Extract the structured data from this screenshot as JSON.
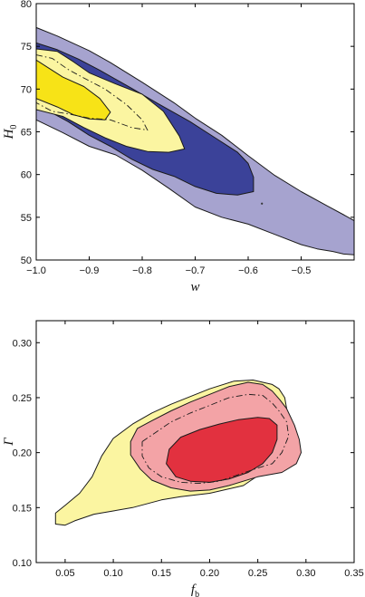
{
  "chart_data": [
    {
      "type": "contour",
      "xlabel": "w",
      "ylabel": "H",
      "ylabel_sub": "0",
      "xlim": [
        -1.0,
        -0.4
      ],
      "ylim": [
        50,
        80
      ],
      "xticks": [
        -1.0,
        -0.9,
        -0.8,
        -0.7,
        -0.6,
        -0.5
      ],
      "xtick_labels": [
        "−1.0",
        "−0.9",
        "−0.8",
        "−0.7",
        "−0.6",
        "−0.5"
      ],
      "yticks": [
        50,
        55,
        60,
        65,
        70,
        75,
        80
      ],
      "ytick_labels": [
        "50",
        "55",
        "60",
        "65",
        "70",
        "75",
        "80"
      ],
      "regions": [
        {
          "level": "outer",
          "color": "#a6a3cf",
          "points": [
            [
              -1.0,
              77.2
            ],
            [
              -0.96,
              76.2
            ],
            [
              -0.9,
              74.5
            ],
            [
              -0.86,
              73.1
            ],
            [
              -0.8,
              70.8
            ],
            [
              -0.74,
              68.4
            ],
            [
              -0.7,
              66.6
            ],
            [
              -0.65,
              64.6
            ],
            [
              -0.6,
              62.2
            ],
            [
              -0.55,
              59.9
            ],
            [
              -0.5,
              58.0
            ],
            [
              -0.45,
              56.3
            ],
            [
              -0.42,
              55.3
            ],
            [
              -0.4,
              54.6
            ],
            [
              -0.4,
              50.6
            ],
            [
              -0.42,
              50.7
            ],
            [
              -0.44,
              51.0
            ],
            [
              -0.47,
              51.3
            ],
            [
              -0.5,
              51.8
            ],
            [
              -0.55,
              53.0
            ],
            [
              -0.6,
              54.2
            ],
            [
              -0.65,
              55.0
            ],
            [
              -0.7,
              56.2
            ],
            [
              -0.75,
              58.4
            ],
            [
              -0.8,
              60.5
            ],
            [
              -0.85,
              62.3
            ],
            [
              -0.9,
              63.3
            ],
            [
              -0.95,
              64.9
            ],
            [
              -1.0,
              66.4
            ]
          ]
        },
        {
          "level": "mid",
          "color": "#3b4299",
          "points": [
            [
              -1.0,
              75.4
            ],
            [
              -0.96,
              74.6
            ],
            [
              -0.92,
              73.5
            ],
            [
              -0.88,
              72.2
            ],
            [
              -0.82,
              70.1
            ],
            [
              -0.77,
              68.3
            ],
            [
              -0.71,
              66.2
            ],
            [
              -0.66,
              64.2
            ],
            [
              -0.62,
              62.6
            ],
            [
              -0.6,
              61.3
            ],
            [
              -0.59,
              59.7
            ],
            [
              -0.59,
              58.0
            ],
            [
              -0.62,
              57.6
            ],
            [
              -0.66,
              57.8
            ],
            [
              -0.7,
              58.6
            ],
            [
              -0.74,
              59.8
            ],
            [
              -0.78,
              60.6
            ],
            [
              -0.82,
              61.8
            ],
            [
              -0.86,
              63.3
            ],
            [
              -0.9,
              64.6
            ],
            [
              -0.94,
              66.2
            ],
            [
              -0.97,
              67.2
            ],
            [
              -1.0,
              67.6
            ]
          ]
        },
        {
          "level": "yellow-outer",
          "color": "#fbf5a1",
          "points": [
            [
              -1.0,
              74.7
            ],
            [
              -0.96,
              74.4
            ],
            [
              -0.93,
              73.2
            ],
            [
              -0.9,
              71.9
            ],
            [
              -0.85,
              70.6
            ],
            [
              -0.8,
              69.4
            ],
            [
              -0.76,
              67.4
            ],
            [
              -0.73,
              64.5
            ],
            [
              -0.72,
              63.0
            ],
            [
              -0.75,
              62.6
            ],
            [
              -0.79,
              62.7
            ],
            [
              -0.83,
              63.3
            ],
            [
              -0.87,
              64.3
            ],
            [
              -0.91,
              65.5
            ],
            [
              -0.95,
              66.8
            ],
            [
              -1.0,
              67.6
            ]
          ]
        },
        {
          "level": "yellow-inner",
          "color": "#f7e317",
          "points": [
            [
              -1.0,
              73.4
            ],
            [
              -0.98,
              72.6
            ],
            [
              -0.95,
              71.4
            ],
            [
              -0.91,
              70.3
            ],
            [
              -0.88,
              68.9
            ],
            [
              -0.86,
              67.3
            ],
            [
              -0.87,
              66.4
            ],
            [
              -0.9,
              66.5
            ],
            [
              -0.93,
              67.0
            ],
            [
              -0.96,
              67.9
            ],
            [
              -1.0,
              68.9
            ]
          ]
        }
      ],
      "dashed_lines": [
        [
          [
            -1.0,
            74.0
          ],
          [
            -0.97,
            73.6
          ],
          [
            -0.94,
            72.3
          ],
          [
            -0.91,
            71.3
          ],
          [
            -0.87,
            70.0
          ],
          [
            -0.83,
            68.2
          ],
          [
            -0.8,
            66.4
          ],
          [
            -0.79,
            65.2
          ],
          [
            -0.82,
            65.5
          ],
          [
            -0.86,
            66.4
          ],
          [
            -0.9,
            66.6
          ],
          [
            -0.94,
            67.1
          ],
          [
            -0.97,
            67.4
          ],
          [
            -1.0,
            68.4
          ]
        ]
      ],
      "markers": [
        [
          -0.574,
          56.6
        ]
      ]
    },
    {
      "type": "contour",
      "xlabel": "f",
      "xlabel_sub": "b",
      "ylabel": "Γ",
      "xlim": [
        0.02,
        0.35
      ],
      "ylim": [
        0.1,
        0.32
      ],
      "xticks": [
        0.05,
        0.1,
        0.15,
        0.2,
        0.25,
        0.3,
        0.35
      ],
      "xtick_labels": [
        "0.05",
        "0.10",
        "0.15",
        "0.20",
        "0.25",
        "0.30",
        "0.35"
      ],
      "yticks": [
        0.1,
        0.15,
        0.2,
        0.25,
        0.3
      ],
      "ytick_labels": [
        "0.10",
        "0.15",
        "0.20",
        "0.25",
        "0.30"
      ],
      "regions": [
        {
          "level": "outer",
          "color": "#fbf5a1",
          "points": [
            [
              0.04,
              0.135
            ],
            [
              0.04,
              0.145
            ],
            [
              0.05,
              0.152
            ],
            [
              0.065,
              0.163
            ],
            [
              0.078,
              0.178
            ],
            [
              0.088,
              0.197
            ],
            [
              0.1,
              0.213
            ],
            [
              0.12,
              0.226
            ],
            [
              0.14,
              0.236
            ],
            [
              0.16,
              0.244
            ],
            [
              0.18,
              0.251
            ],
            [
              0.2,
              0.258
            ],
            [
              0.225,
              0.265
            ],
            [
              0.245,
              0.266
            ],
            [
              0.265,
              0.262
            ],
            [
              0.272,
              0.258
            ],
            [
              0.278,
              0.25
            ],
            [
              0.28,
              0.24
            ],
            [
              0.28,
              0.225
            ],
            [
              0.27,
              0.2
            ],
            [
              0.255,
              0.182
            ],
            [
              0.235,
              0.17
            ],
            [
              0.2,
              0.163
            ],
            [
              0.17,
              0.16
            ],
            [
              0.15,
              0.157
            ],
            [
              0.12,
              0.15
            ],
            [
              0.1,
              0.147
            ],
            [
              0.08,
              0.144
            ],
            [
              0.06,
              0.138
            ],
            [
              0.05,
              0.134
            ]
          ]
        },
        {
          "level": "mid",
          "color": "#f3a3a6",
          "points": [
            [
              0.118,
              0.21
            ],
            [
              0.125,
              0.222
            ],
            [
              0.14,
              0.229
            ],
            [
              0.16,
              0.238
            ],
            [
              0.18,
              0.246
            ],
            [
              0.2,
              0.253
            ],
            [
              0.22,
              0.26
            ],
            [
              0.24,
              0.264
            ],
            [
              0.255,
              0.262
            ],
            [
              0.265,
              0.256
            ],
            [
              0.273,
              0.248
            ],
            [
              0.28,
              0.24
            ],
            [
              0.288,
              0.225
            ],
            [
              0.293,
              0.212
            ],
            [
              0.295,
              0.2
            ],
            [
              0.29,
              0.19
            ],
            [
              0.275,
              0.182
            ],
            [
              0.25,
              0.178
            ],
            [
              0.22,
              0.17
            ],
            [
              0.2,
              0.166
            ],
            [
              0.18,
              0.165
            ],
            [
              0.16,
              0.168
            ],
            [
              0.14,
              0.175
            ],
            [
              0.128,
              0.185
            ],
            [
              0.118,
              0.198
            ]
          ]
        },
        {
          "level": "inner",
          "color": "#e2313f",
          "points": [
            [
              0.155,
              0.19
            ],
            [
              0.158,
              0.203
            ],
            [
              0.17,
              0.214
            ],
            [
              0.19,
              0.221
            ],
            [
              0.21,
              0.226
            ],
            [
              0.23,
              0.23
            ],
            [
              0.25,
              0.232
            ],
            [
              0.262,
              0.231
            ],
            [
              0.27,
              0.225
            ],
            [
              0.27,
              0.212
            ],
            [
              0.265,
              0.2
            ],
            [
              0.255,
              0.19
            ],
            [
              0.24,
              0.182
            ],
            [
              0.22,
              0.176
            ],
            [
              0.2,
              0.173
            ],
            [
              0.18,
              0.174
            ],
            [
              0.165,
              0.178
            ]
          ]
        }
      ],
      "dashed_lines": [
        [
          [
            0.13,
            0.21
          ],
          [
            0.145,
            0.219
          ],
          [
            0.16,
            0.228
          ],
          [
            0.18,
            0.236
          ],
          [
            0.2,
            0.243
          ],
          [
            0.22,
            0.25
          ],
          [
            0.24,
            0.253
          ],
          [
            0.255,
            0.252
          ],
          [
            0.265,
            0.245
          ],
          [
            0.272,
            0.238
          ],
          [
            0.28,
            0.228
          ],
          [
            0.282,
            0.215
          ],
          [
            0.275,
            0.2
          ],
          [
            0.265,
            0.19
          ],
          [
            0.25,
            0.186
          ],
          [
            0.23,
            0.18
          ],
          [
            0.21,
            0.174
          ],
          [
            0.19,
            0.172
          ],
          [
            0.17,
            0.173
          ],
          [
            0.15,
            0.178
          ],
          [
            0.137,
            0.186
          ],
          [
            0.13,
            0.197
          ],
          [
            0.13,
            0.21
          ]
        ]
      ],
      "markers": []
    }
  ]
}
